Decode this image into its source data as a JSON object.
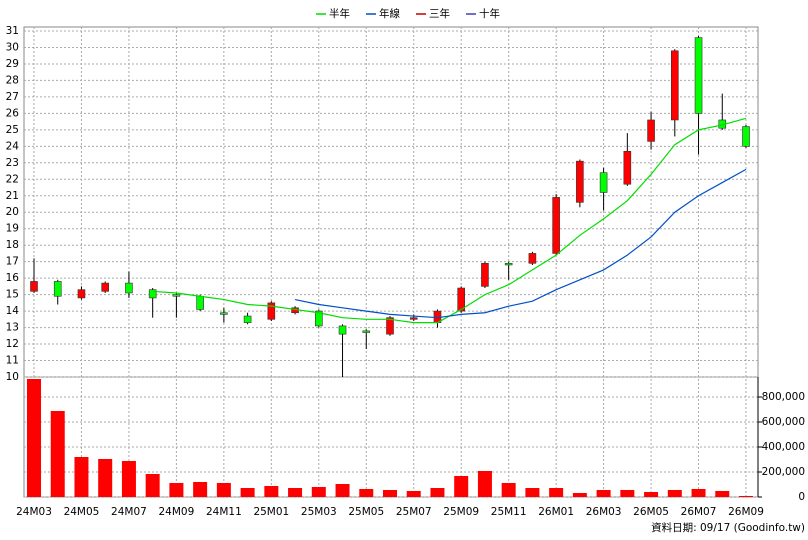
{
  "chart_data": [
    {
      "type": "candlestick",
      "categories": [
        "24M03",
        null,
        "24M05",
        null,
        "24M07",
        null,
        "24M09",
        null,
        "24M11",
        null,
        "25M01",
        null,
        "25M03",
        null,
        "25M05",
        null,
        "25M07",
        null,
        "25M09",
        null,
        "25M11",
        null,
        "26M01",
        null,
        "26M03",
        null,
        "26M05",
        null,
        "26M07",
        null,
        "26M09"
      ],
      "open": [
        15.2,
        15.8,
        14.8,
        15.2,
        15.7,
        15.3,
        15.0,
        14.9,
        13.9,
        13.7,
        13.5,
        13.9,
        14.0,
        13.1,
        12.8,
        12.6,
        13.5,
        13.3,
        14.0,
        15.5,
        16.9,
        16.9,
        17.5,
        20.6,
        22.4,
        21.7,
        24.3,
        25.6,
        30.6,
        25.6,
        25.2
      ],
      "high": [
        17.2,
        15.9,
        15.5,
        15.8,
        16.4,
        15.4,
        15.1,
        15.0,
        14.2,
        13.9,
        14.6,
        14.3,
        14.1,
        13.2,
        12.9,
        13.7,
        13.8,
        14.1,
        15.5,
        17.0,
        17.0,
        17.6,
        21.1,
        23.2,
        22.7,
        24.8,
        26.1,
        29.9,
        30.7,
        27.2,
        25.3
      ],
      "low": [
        15.1,
        14.4,
        14.7,
        15.1,
        14.8,
        13.6,
        13.6,
        14.0,
        13.3,
        13.2,
        13.4,
        13.8,
        13.0,
        10.0,
        11.7,
        12.5,
        13.4,
        13.0,
        13.9,
        15.4,
        15.9,
        16.8,
        17.4,
        20.3,
        20.1,
        21.6,
        23.8,
        24.6,
        23.5,
        25.0,
        23.9
      ],
      "close": [
        15.8,
        14.9,
        15.3,
        15.7,
        15.1,
        14.8,
        14.9,
        14.1,
        13.8,
        13.3,
        14.5,
        14.2,
        13.1,
        12.6,
        12.7,
        13.6,
        13.6,
        14.0,
        15.4,
        16.9,
        16.8,
        17.5,
        20.9,
        23.1,
        21.2,
        23.7,
        25.6,
        29.8,
        26.0,
        25.1,
        24.0
      ],
      "up_color": "#ff0000",
      "down_color": "#00ff00",
      "series": [
        {
          "name": "半年",
          "color": "#00dd00",
          "values": [
            null,
            null,
            null,
            null,
            null,
            15.2,
            15.1,
            14.9,
            14.7,
            14.4,
            14.3,
            14.1,
            13.9,
            13.6,
            13.5,
            13.5,
            13.3,
            13.3,
            14.1,
            15.0,
            15.6,
            16.5,
            17.4,
            18.6,
            19.6,
            20.7,
            22.3,
            24.1,
            25.0,
            25.3,
            25.7
          ]
        },
        {
          "name": "年線",
          "color": "#0050c8",
          "values": [
            null,
            null,
            null,
            null,
            null,
            null,
            null,
            null,
            null,
            null,
            null,
            14.7,
            14.4,
            14.2,
            14.0,
            13.8,
            13.7,
            13.6,
            13.8,
            13.9,
            14.3,
            14.6,
            15.3,
            15.9,
            16.5,
            17.4,
            18.5,
            20.0,
            21.0,
            21.8,
            22.6
          ]
        },
        {
          "name": "三年",
          "color": "#c00000",
          "values": [
            null,
            null,
            null,
            null,
            null,
            null,
            null,
            null,
            null,
            null,
            null,
            null,
            null,
            null,
            null,
            null,
            null,
            null,
            null,
            null,
            null,
            null,
            null,
            null,
            null,
            null,
            null,
            null,
            null,
            null,
            null
          ]
        },
        {
          "name": "十年",
          "color": "#4040b0",
          "values": [
            null,
            null,
            null,
            null,
            null,
            null,
            null,
            null,
            null,
            null,
            null,
            null,
            null,
            null,
            null,
            null,
            null,
            null,
            null,
            null,
            null,
            null,
            null,
            null,
            null,
            null,
            null,
            null,
            null,
            null,
            null
          ]
        }
      ],
      "ylim": [
        10,
        31
      ],
      "yticks": [
        10,
        11,
        12,
        13,
        14,
        15,
        16,
        17,
        18,
        19,
        20,
        21,
        22,
        23,
        24,
        25,
        26,
        27,
        28,
        29,
        30,
        31
      ],
      "grid": true,
      "legend": "top"
    },
    {
      "type": "bar",
      "color": "#ff0000",
      "values": [
        944000,
        688000,
        320000,
        304000,
        288000,
        184000,
        112000,
        120000,
        112000,
        72000,
        88000,
        72000,
        80000,
        104000,
        64000,
        56000,
        48000,
        72000,
        168000,
        208000,
        112000,
        72000,
        72000,
        32000,
        56000,
        56000,
        40000,
        56000,
        64000,
        48000,
        8000
      ],
      "ylim": [
        0,
        960000
      ],
      "yticks": [
        0,
        {
          "value": 200000,
          "label": "200,000"
        },
        {
          "value": 400000,
          "label": "400,000"
        },
        {
          "value": 600000,
          "label": "600,000"
        },
        {
          "value": 800000,
          "label": "800,000"
        }
      ],
      "grid": true
    }
  ],
  "footer": "資料日期: 09/17 (Goodinfo.tw)"
}
